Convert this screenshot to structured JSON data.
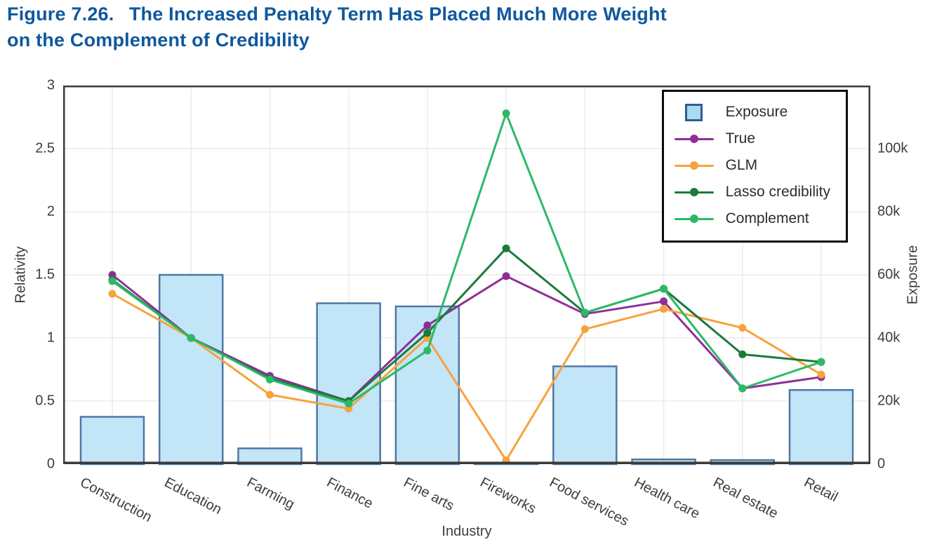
{
  "figure": {
    "title_line1": "Figure 7.26.  The Increased Penalty Term Has Placed Much More Weight",
    "title_line2": "on the Complement of Credibility",
    "title_color": "#0f589e"
  },
  "chart_data": {
    "type": "bar+line combo",
    "title": "The Increased Penalty Term Has Placed Much More Weight on the Complement of Credibility",
    "xlabel": "Industry",
    "categories": [
      "Construction",
      "Education",
      "Farming",
      "Finance",
      "Fine arts",
      "Fireworks",
      "Food services",
      "Health care",
      "Real estate",
      "Retail"
    ],
    "bar_series": {
      "name": "Exposure",
      "axis": "right",
      "values": [
        15000,
        60000,
        5000,
        51000,
        50000,
        500,
        31000,
        1500,
        1300,
        23500
      ],
      "fill": "#c3e5f8",
      "border": "#4f78a4"
    },
    "line_series": [
      {
        "name": "True",
        "color": "#8e2f99",
        "values": [
          1.5,
          1.0,
          0.7,
          0.5,
          1.1,
          1.49,
          1.19,
          1.29,
          0.6,
          0.69
        ]
      },
      {
        "name": "GLM",
        "color": "#f7a23d",
        "values": [
          1.35,
          1.0,
          0.55,
          0.44,
          1.0,
          0.03,
          1.07,
          1.23,
          1.08,
          0.71
        ]
      },
      {
        "name": "Lasso credibility",
        "color": "#1c7a3a",
        "values": [
          1.46,
          1.0,
          0.68,
          0.5,
          1.04,
          1.71,
          1.2,
          1.39,
          0.87,
          0.81
        ]
      },
      {
        "name": "Complement",
        "color": "#2bb966",
        "values": [
          1.45,
          1.0,
          0.67,
          0.48,
          0.9,
          2.78,
          1.2,
          1.39,
          0.6,
          0.81
        ]
      }
    ],
    "left_axis": {
      "label": "Relativity",
      "min": 0,
      "max": 3,
      "ticks": [
        {
          "label": "0",
          "value": 0
        },
        {
          "label": "0.5",
          "value": 0.5
        },
        {
          "label": "1",
          "value": 1
        },
        {
          "label": "1.5",
          "value": 1.5
        },
        {
          "label": "2",
          "value": 2
        },
        {
          "label": "2.5",
          "value": 2.5
        },
        {
          "label": "3",
          "value": 3
        }
      ],
      "grid_values": [
        0.5,
        1,
        1.5,
        2,
        2.5
      ]
    },
    "right_axis": {
      "label": "Exposure",
      "min": 0,
      "max": 120000,
      "ticks": [
        {
          "label": "0",
          "value": 0
        },
        {
          "label": "20k",
          "value": 20000
        },
        {
          "label": "40k",
          "value": 40000
        },
        {
          "label": "60k",
          "value": 60000
        },
        {
          "label": "80k",
          "value": 80000
        },
        {
          "label": "100k",
          "value": 100000
        }
      ]
    },
    "legend": {
      "position": "top-right",
      "entries": [
        "Exposure",
        "True",
        "GLM",
        "Lasso credibility",
        "Complement"
      ]
    },
    "grid": true,
    "colors": {
      "frame": "#3a3a3a",
      "gridline": "#ececec",
      "tick_text": "#3d3d3d",
      "legend_border": "#0a0a0a"
    }
  }
}
